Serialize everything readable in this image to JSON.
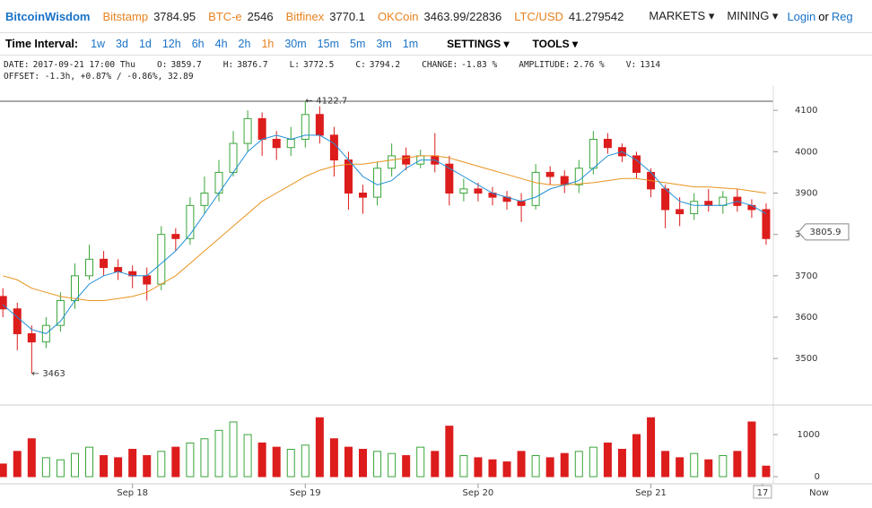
{
  "header": {
    "brand": "BitcoinWisdom",
    "markets": [
      {
        "name": "Bitstamp",
        "price": 3784.95
      },
      {
        "name": "BTC-e",
        "price": 2546
      },
      {
        "name": "Bitfinex",
        "price": 3770.1
      },
      {
        "name": "OKCoin",
        "price": "3463.99/22836"
      },
      {
        "name": "LTC/USD",
        "price": 41.279542
      }
    ],
    "menu": [
      "MARKETS",
      "MINING"
    ],
    "login": "Login",
    "or": "or",
    "register": "Reg"
  },
  "toolbar": {
    "label": "Time Interval:",
    "intervals": [
      "1w",
      "3d",
      "1d",
      "12h",
      "6h",
      "4h",
      "2h",
      "1h",
      "30m",
      "15m",
      "5m",
      "3m",
      "1m"
    ],
    "settings": "SETTINGS",
    "tools": "TOOLS"
  },
  "info": {
    "line1": [
      {
        "label": "DATE:",
        "value": "2017-09-21 17:00 Thu"
      },
      {
        "label": "O:",
        "value": 3859.7
      },
      {
        "label": "H:",
        "value": 3876.7
      },
      {
        "label": "L:",
        "value": 3772.5
      },
      {
        "label": "C:",
        "value": 3794.2
      },
      {
        "label": "CHANGE:",
        "value": "-1.83 %"
      },
      {
        "label": "AMPLITUDE:",
        "value": "2.76 %"
      },
      {
        "label": "V:",
        "value": 1314
      }
    ],
    "line2": "OFFSET: -1.3h, +0.87% / -0.86%, 32.89"
  },
  "chart_data": {
    "type": "candlestick",
    "x": [
      -18,
      -16,
      -14,
      -12,
      -10,
      -8,
      -6,
      -4,
      -2,
      0,
      2,
      4,
      6,
      8,
      10,
      12,
      14,
      16,
      18,
      20,
      22,
      24,
      26,
      28,
      30,
      32,
      34,
      36,
      38,
      40,
      42,
      44,
      46,
      48,
      50,
      52,
      54,
      56,
      58,
      60,
      62,
      64,
      66,
      68,
      70,
      72,
      74,
      76,
      78,
      80,
      82,
      84,
      86,
      88
    ],
    "open": [
      3650,
      3620,
      3560,
      3540,
      3580,
      3640,
      3700,
      3740,
      3720,
      3710,
      3700,
      3680,
      3800,
      3790,
      3870,
      3900,
      3950,
      4020,
      4080,
      4030,
      4010,
      4030,
      4090,
      4040,
      3980,
      3900,
      3890,
      3960,
      3990,
      3970,
      3990,
      3970,
      3900,
      3910,
      3900,
      3890,
      3880,
      3870,
      3950,
      3940,
      3920,
      3960,
      4030,
      4010,
      3990,
      3950,
      3910,
      3860,
      3850,
      3880,
      3870,
      3890,
      3870,
      3860
    ],
    "high": [
      3670,
      3635,
      3580,
      3600,
      3660,
      3730,
      3775,
      3760,
      3740,
      3725,
      3720,
      3820,
      3815,
      3890,
      3940,
      3980,
      4050,
      4100,
      4095,
      4050,
      4060,
      4122.7,
      4110,
      4060,
      4000,
      3920,
      3975,
      4020,
      4010,
      4005,
      4045,
      3990,
      3935,
      3925,
      3915,
      3905,
      3900,
      3970,
      3965,
      3955,
      3980,
      4050,
      4045,
      4020,
      4000,
      3960,
      3920,
      3890,
      3900,
      3910,
      3905,
      3910,
      3885,
      3875
    ],
    "low": [
      3600,
      3520,
      3463,
      3525,
      3565,
      3620,
      3690,
      3700,
      3690,
      3670,
      3640,
      3665,
      3760,
      3775,
      3850,
      3880,
      3940,
      4000,
      3990,
      3980,
      3990,
      4010,
      4020,
      3940,
      3860,
      3850,
      3870,
      3940,
      3955,
      3960,
      3950,
      3870,
      3880,
      3880,
      3870,
      3860,
      3830,
      3860,
      3920,
      3900,
      3900,
      3945,
      3995,
      3975,
      3935,
      3890,
      3815,
      3820,
      3835,
      3855,
      3850,
      3855,
      3840,
      3775
    ],
    "close": [
      3620,
      3560,
      3540,
      3580,
      3640,
      3700,
      3740,
      3720,
      3710,
      3700,
      3680,
      3800,
      3790,
      3870,
      3900,
      3950,
      4020,
      4080,
      4030,
      4010,
      4030,
      4090,
      4040,
      3980,
      3900,
      3890,
      3960,
      3990,
      3970,
      3990,
      3970,
      3900,
      3910,
      3900,
      3890,
      3880,
      3870,
      3950,
      3940,
      3920,
      3960,
      4030,
      4010,
      3990,
      3950,
      3910,
      3860,
      3850,
      3880,
      3870,
      3890,
      3870,
      3860,
      3790
    ],
    "volume": [
      300,
      600,
      900,
      450,
      400,
      550,
      700,
      500,
      450,
      650,
      500,
      600,
      700,
      800,
      900,
      1100,
      1300,
      1000,
      800,
      700,
      650,
      750,
      1400,
      900,
      700,
      650,
      600,
      550,
      500,
      700,
      600,
      1200,
      500,
      450,
      400,
      350,
      600,
      500,
      450,
      550,
      600,
      700,
      800,
      650,
      1000,
      1400,
      600,
      450,
      550,
      400,
      500,
      600,
      1300,
      250
    ],
    "ma_fast": {
      "color": "#1f8fd6",
      "values": [
        3630,
        3600,
        3570,
        3560,
        3590,
        3640,
        3680,
        3700,
        3710,
        3700,
        3700,
        3730,
        3760,
        3800,
        3850,
        3900,
        3950,
        4000,
        4030,
        4040,
        4030,
        4040,
        4040,
        4020,
        3980,
        3940,
        3920,
        3930,
        3960,
        3980,
        3980,
        3960,
        3940,
        3920,
        3900,
        3890,
        3880,
        3890,
        3910,
        3920,
        3930,
        3960,
        3990,
        4000,
        3980,
        3950,
        3910,
        3880,
        3870,
        3870,
        3870,
        3880,
        3870,
        3850
      ]
    },
    "ma_slow": {
      "color": "#e8931e",
      "values": [
        3700,
        3690,
        3670,
        3660,
        3650,
        3645,
        3640,
        3640,
        3645,
        3650,
        3660,
        3680,
        3700,
        3730,
        3760,
        3790,
        3820,
        3850,
        3880,
        3900,
        3920,
        3940,
        3955,
        3965,
        3970,
        3970,
        3975,
        3980,
        3985,
        3990,
        3990,
        3985,
        3975,
        3965,
        3955,
        3945,
        3935,
        3925,
        3920,
        3920,
        3922,
        3925,
        3930,
        3935,
        3935,
        3930,
        3925,
        3920,
        3915,
        3915,
        3912,
        3910,
        3905,
        3900
      ]
    },
    "up_color": "#3aa53a",
    "down_color": "#dd1c1c",
    "xlim": [
      -18.4,
      89
    ],
    "xticks": [
      {
        "value": 0,
        "label": "Sep 18"
      },
      {
        "value": 24,
        "label": "Sep 19"
      },
      {
        "value": 48,
        "label": "Sep 20"
      },
      {
        "value": 72,
        "label": "Sep 21"
      },
      {
        "value": 87.5,
        "label": "17"
      }
    ],
    "now_label": "Now",
    "ylim": [
      3392,
      4161
    ],
    "yticks": [
      3500,
      3600,
      3700,
      3800,
      3900,
      4000,
      4100
    ],
    "volume_ylim": [
      0,
      1640
    ],
    "volume_yticks": [
      0,
      1000
    ],
    "last_price": 3805.9,
    "high_marker": 4122.7,
    "low_marker": 3463
  }
}
